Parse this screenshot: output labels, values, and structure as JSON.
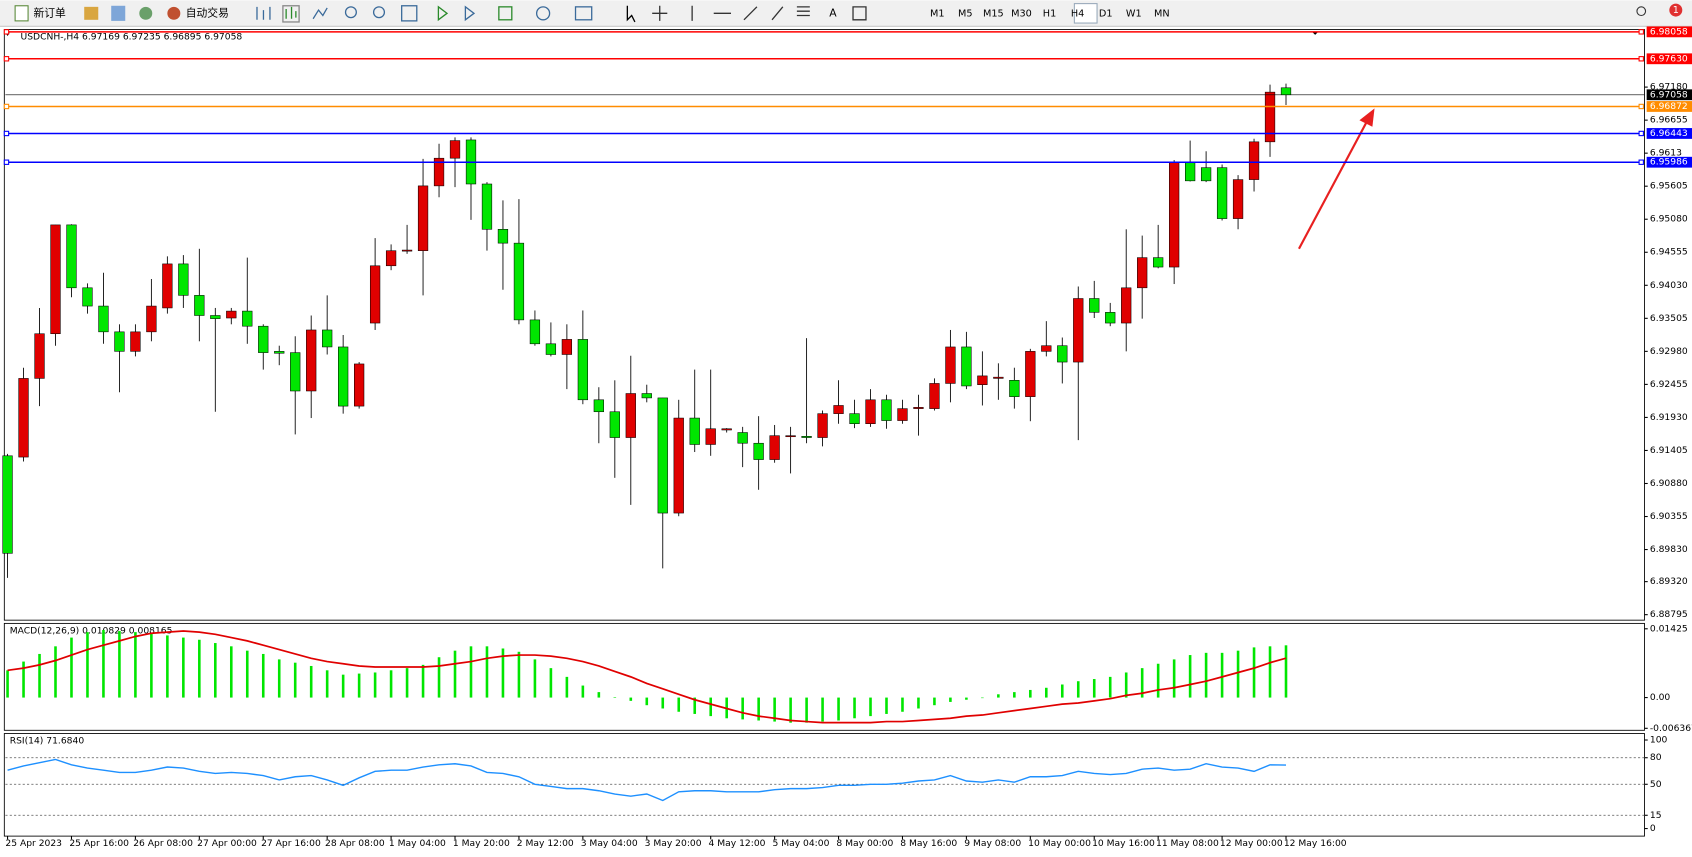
{
  "toolbar": {
    "new_order": "新订单",
    "auto_trading": "自动交易",
    "timeframes": [
      "M1",
      "M5",
      "M15",
      "M30",
      "H1",
      "H4",
      "D1",
      "W1",
      "MN"
    ],
    "active_timeframe": "H4",
    "notifications": "1"
  },
  "chart_data": [
    {
      "type": "candlestick",
      "header": "USDCNH-,H4  6.97169 6.97235 6.96895 6.97058",
      "up_color": "#e00000",
      "down_color": "#00e600",
      "open": [
        6.9132,
        6.913,
        6.9255,
        6.9326,
        6.9499,
        6.9399,
        6.937,
        6.9329,
        6.9298,
        6.9329,
        6.9367,
        6.9437,
        6.9387,
        6.9355,
        6.9351,
        6.9362,
        6.9338,
        6.9298,
        6.9296,
        6.9235,
        6.9332,
        6.9305,
        6.9211,
        6.9343,
        6.9434,
        6.9458,
        6.9458,
        6.9561,
        6.9605,
        6.9634,
        6.9564,
        6.9492,
        6.947,
        6.9348,
        6.931,
        6.9293,
        6.9317,
        6.9221,
        6.9202,
        6.9161,
        6.9231,
        6.9224,
        6.9041,
        6.9192,
        6.915,
        6.9173,
        6.9169,
        6.9152,
        6.9126,
        6.9163,
        6.9163,
        6.9161,
        6.9199,
        6.9199,
        6.9183,
        6.9221,
        6.9188,
        6.9207,
        6.9207,
        6.9247,
        6.9305,
        6.9245,
        6.9255,
        6.9252,
        6.9226,
        6.9298,
        6.9307,
        6.9281,
        6.9382,
        6.936,
        6.9343,
        6.9399,
        6.9447,
        6.9432,
        6.9598,
        6.959,
        6.959,
        6.9509,
        6.9571,
        6.9631,
        6.97169
      ],
      "high": [
        6.9135,
        6.9272,
        6.9367,
        6.9499,
        6.95,
        6.9406,
        6.9423,
        6.9341,
        6.9341,
        6.9413,
        6.9449,
        6.9451,
        6.9461,
        6.9367,
        6.9367,
        6.9447,
        6.9341,
        6.9307,
        6.9322,
        6.9355,
        6.9387,
        6.9324,
        6.9281,
        6.9478,
        6.9468,
        6.9499,
        6.9604,
        6.9628,
        6.9638,
        6.9638,
        6.9567,
        6.9538,
        6.954,
        6.9363,
        6.9344,
        6.9341,
        6.9363,
        6.9241,
        6.9252,
        6.9291,
        6.9245,
        6.9224,
        6.9221,
        6.9269,
        6.9269,
        6.9176,
        6.9178,
        6.9195,
        6.9181,
        6.9178,
        6.9319,
        6.9204,
        6.9252,
        6.9221,
        6.9238,
        6.9229,
        6.9221,
        6.9229,
        6.9255,
        6.9332,
        6.9329,
        6.9298,
        6.9279,
        6.9272,
        6.9302,
        6.9346,
        6.932,
        6.9401,
        6.941,
        6.9375,
        6.9492,
        6.9482,
        6.9499,
        6.9602,
        6.9633,
        6.9616,
        6.9595,
        6.9578,
        6.9636,
        6.9722,
        6.97235
      ],
      "low": [
        6.8938,
        6.9123,
        6.9211,
        6.9307,
        6.9384,
        6.9358,
        6.931,
        6.9233,
        6.929,
        6.9314,
        6.9358,
        6.9367,
        6.9314,
        6.9202,
        6.9341,
        6.931,
        6.9269,
        6.9276,
        6.9166,
        6.9192,
        6.9293,
        6.9199,
        6.9207,
        6.9332,
        6.9427,
        6.9453,
        6.9387,
        6.9543,
        6.9559,
        6.9507,
        6.9458,
        6.9396,
        6.9341,
        6.9307,
        6.929,
        6.9238,
        6.9214,
        6.9152,
        6.9097,
        6.9054,
        6.9217,
        6.8953,
        6.9036,
        6.9138,
        6.9132,
        6.9169,
        6.9114,
        6.9078,
        6.9121,
        6.9104,
        6.9152,
        6.9147,
        6.9183,
        6.9176,
        6.9178,
        6.9175,
        6.9183,
        6.9164,
        6.9204,
        6.9217,
        6.9238,
        6.9212,
        6.9221,
        6.9207,
        6.9187,
        6.929,
        6.9247,
        6.9157,
        6.9351,
        6.9338,
        6.9298,
        6.935,
        6.943,
        6.9405,
        6.9568,
        6.9567,
        6.9506,
        6.9492,
        6.9552,
        6.9607,
        6.96895
      ],
      "close": [
        6.8977,
        6.9255,
        6.9326,
        6.9499,
        6.9399,
        6.937,
        6.9329,
        6.9298,
        6.9329,
        6.937,
        6.9437,
        6.9387,
        6.9355,
        6.935,
        6.9362,
        6.9338,
        6.9296,
        6.9295,
        6.9235,
        6.9332,
        6.9305,
        6.9211,
        6.9278,
        6.9434,
        6.9458,
        6.9459,
        6.9561,
        6.9605,
        6.9633,
        6.9564,
        6.9492,
        6.947,
        6.9348,
        6.931,
        6.9293,
        6.9317,
        6.9221,
        6.9202,
        6.9161,
        6.9231,
        6.9224,
        6.9041,
        6.9192,
        6.915,
        6.9175,
        6.9175,
        6.9152,
        6.9126,
        6.9164,
        6.9164,
        6.9161,
        6.9199,
        6.9212,
        6.9183,
        6.9221,
        6.9188,
        6.9207,
        6.9209,
        6.9247,
        6.9305,
        6.9243,
        6.9259,
        6.9257,
        6.9226,
        6.9298,
        6.9307,
        6.9281,
        6.9382,
        6.936,
        6.9343,
        6.9399,
        6.9447,
        6.9432,
        6.9598,
        6.9569,
        6.9569,
        6.9509,
        6.9571,
        6.9631,
        6.971,
        6.97058
      ],
      "ylim": [
        6.88725,
        6.98095
      ],
      "yticks": [
        {
          "value": 6.9718,
          "label": "6.97180"
        },
        6.96655,
        6.9613,
        6.95605,
        {
          "value": 6.9508,
          "label": "6.95080"
        },
        6.94555,
        {
          "value": 6.9403,
          "label": "6.94030"
        },
        6.93505,
        {
          "value": 6.9298,
          "label": "6.92980"
        },
        6.92455,
        {
          "value": 6.9193,
          "label": "6.91930"
        },
        6.91405,
        {
          "value": 6.9088,
          "label": "6.90880"
        },
        6.90355,
        {
          "value": 6.8983,
          "label": "6.89830"
        },
        {
          "value": 6.8932,
          "label": "6.89320"
        },
        6.88795
      ],
      "levels": [
        {
          "value": 6.98058,
          "color": "#ff0000"
        },
        {
          "value": 6.9763,
          "label": "6.97630",
          "color": "#ff0000"
        },
        {
          "value": 6.96872,
          "color": "#ff8c00"
        },
        {
          "value": 6.96443,
          "color": "#0000ff"
        },
        {
          "value": 6.95986,
          "color": "#0000ff"
        }
      ],
      "x_labels": [
        "25 Apr 2023",
        "25 Apr 16:00",
        "26 Apr 08:00",
        "27 Apr 00:00",
        "27 Apr 16:00",
        "28 Apr 08:00",
        "1 May 04:00",
        "1 May 20:00",
        "2 May 12:00",
        "3 May 04:00",
        "3 May 20:00",
        "4 May 12:00",
        "5 May 04:00",
        "8 May 00:00",
        "8 May 16:00",
        "9 May 08:00",
        "10 May 00:00",
        "10 May 16:00",
        "11 May 08:00",
        "12 May 00:00",
        "12 May 16:00"
      ]
    },
    {
      "type": "macd",
      "header": "MACD(12,26,9) 0.010829 0.008165",
      "color": "#00e600",
      "signal_color": "#e00000",
      "histogram": [
        0.00565,
        0.00746,
        0.00904,
        0.01062,
        0.01243,
        0.01356,
        0.01401,
        0.01379,
        0.01356,
        0.01333,
        0.01288,
        0.01243,
        0.01198,
        0.0113,
        0.01062,
        0.00972,
        0.00904,
        0.00791,
        0.00723,
        0.00655,
        0.00565,
        0.00475,
        0.00497,
        0.0052,
        0.00565,
        0.0061,
        0.00678,
        0.00836,
        0.00972,
        0.01062,
        0.01062,
        0.01017,
        0.00949,
        0.00791,
        0.0061,
        0.00429,
        0.00249,
        0.00113,
        0.0001,
        -0.00068,
        -0.00158,
        -0.00226,
        -0.00294,
        -0.00339,
        -0.00384,
        -0.00429,
        -0.00452,
        -0.00475,
        -0.00497,
        -0.0052,
        -0.0052,
        -0.00497,
        -0.00475,
        -0.00429,
        -0.00384,
        -0.00339,
        -0.00294,
        -0.00226,
        -0.00158,
        -0.0009,
        -0.00045,
        -0.0001,
        0.00068,
        0.00113,
        0.00158,
        0.00203,
        0.00271,
        0.00339,
        0.00384,
        0.00429,
        0.0052,
        0.0061,
        0.00701,
        0.00791,
        0.00881,
        0.00927,
        0.00927,
        0.00972,
        0.0104,
        0.01062,
        0.010829
      ],
      "signal": [
        0.00565,
        0.0061,
        0.00678,
        0.00768,
        0.00881,
        0.00994,
        0.01085,
        0.01175,
        0.01266,
        0.01333,
        0.01356,
        0.01379,
        0.01356,
        0.01311,
        0.01243,
        0.01175,
        0.01085,
        0.00994,
        0.00904,
        0.00814,
        0.00746,
        0.00701,
        0.00655,
        0.00633,
        0.00633,
        0.00633,
        0.00633,
        0.00655,
        0.00701,
        0.00746,
        0.00814,
        0.00859,
        0.00881,
        0.00881,
        0.00859,
        0.00814,
        0.00746,
        0.00655,
        0.00542,
        0.00429,
        0.00294,
        0.00181,
        0.00068,
        -0.00045,
        -0.00136,
        -0.00226,
        -0.00316,
        -0.00384,
        -0.00429,
        -0.00475,
        -0.00497,
        -0.0052,
        -0.0052,
        -0.0052,
        -0.0052,
        -0.00497,
        -0.00497,
        -0.00475,
        -0.00452,
        -0.00429,
        -0.00384,
        -0.00362,
        -0.00316,
        -0.00271,
        -0.00226,
        -0.00181,
        -0.00136,
        -0.00113,
        -0.00068,
        -0.00023,
        0.00045,
        0.0009,
        0.00158,
        0.00203,
        0.00271,
        0.00339,
        0.00429,
        0.0052,
        0.0061,
        0.00723,
        0.008165
      ],
      "ylim": [
        -0.00678,
        0.01537
      ],
      "yticks": [
        0.01425,
        {
          "value": 0,
          "label": "0.00"
        },
        -0.006367
      ]
    },
    {
      "type": "line",
      "header": "RSI(14) 71.6840",
      "color": "#1e90ff",
      "values": [
        65.9,
        70.7,
        74.4,
        78.0,
        72.0,
        68.3,
        65.9,
        63.4,
        63.4,
        65.9,
        69.5,
        68.3,
        64.6,
        62.2,
        63.4,
        62.2,
        59.8,
        54.9,
        58.5,
        59.8,
        54.9,
        48.8,
        57.3,
        64.6,
        65.9,
        65.9,
        69.5,
        72.0,
        73.2,
        70.7,
        63.4,
        62.2,
        58.5,
        50.0,
        47.6,
        45.1,
        45.1,
        42.7,
        39.0,
        36.6,
        39.0,
        31.7,
        41.5,
        42.7,
        42.7,
        41.5,
        41.5,
        41.5,
        43.9,
        45.1,
        45.1,
        46.3,
        48.8,
        48.8,
        50.0,
        50.0,
        51.2,
        53.7,
        54.9,
        59.8,
        53.7,
        52.4,
        54.9,
        52.4,
        58.5,
        58.5,
        59.8,
        64.6,
        62.2,
        61.0,
        62.2,
        67.1,
        68.3,
        65.9,
        67.1,
        73.2,
        69.5,
        68.3,
        64.6,
        72.0,
        71.684
      ],
      "ylim": [
        0,
        100
      ],
      "yticks": [
        100,
        80,
        50,
        15,
        0
      ],
      "levels": [
        80,
        50,
        15
      ]
    }
  ]
}
